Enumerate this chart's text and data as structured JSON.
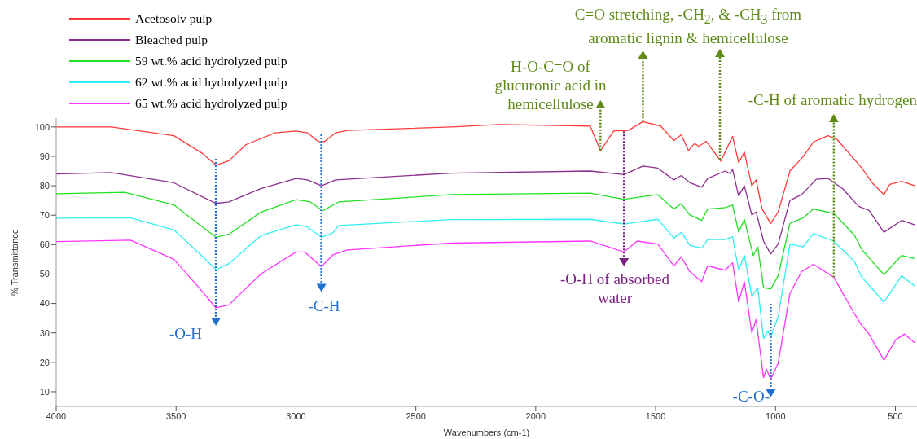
{
  "chart_data": {
    "type": "line",
    "xlabel": "Wavenumbers (cm-1)",
    "ylabel": "% Transmittance",
    "xlim": [
      4000,
      410
    ],
    "ylim": [
      5,
      103
    ],
    "xticks": [
      4000,
      3500,
      3000,
      2500,
      2000,
      1500,
      1000,
      500
    ],
    "yticks": [
      10,
      20,
      30,
      40,
      50,
      60,
      70,
      80,
      90,
      100
    ],
    "legend": "top left",
    "series": [
      {
        "name": "Acetosolv pulp",
        "color": "#ff3b3b",
        "x": [
          4000,
          3770,
          3509,
          3390,
          3334,
          3280,
          3208,
          3087,
          3000,
          2952,
          2906,
          2882,
          2834,
          2786,
          2352,
          2153,
          1773,
          1730,
          1675,
          1614,
          1553,
          1479,
          1424,
          1393,
          1363,
          1338,
          1320,
          1289,
          1228,
          1179,
          1154,
          1130,
          1099,
          1081,
          1056,
          1020,
          989,
          940,
          885,
          842,
          781,
          744,
          671,
          640,
          597,
          548,
          523,
          474,
          419
        ],
        "values": [
          100,
          100,
          97,
          91,
          87,
          88.5,
          94,
          98,
          98.6,
          98,
          95,
          95,
          98,
          98.8,
          100,
          100.8,
          100.3,
          91.9,
          98.6,
          98.8,
          101.8,
          100.3,
          95.4,
          97.3,
          91.9,
          94.4,
          93.4,
          95.1,
          88.4,
          96.8,
          87.9,
          91.4,
          80,
          82,
          72.1,
          67.2,
          71.1,
          85,
          89.9,
          94.9,
          97,
          95.8,
          88.9,
          86,
          81,
          77,
          80.5,
          81.5,
          80
        ]
      },
      {
        "name": "Bleached pulp",
        "color": "#8b2f8f",
        "x": [
          4000,
          3770,
          3509,
          3334,
          3280,
          3147,
          3000,
          2952,
          2894,
          2834,
          2352,
          1773,
          1632,
          1553,
          1491,
          1424,
          1393,
          1357,
          1308,
          1283,
          1210,
          1191,
          1179,
          1154,
          1130,
          1099,
          1081,
          1050,
          1020,
          989,
          940,
          891,
          830,
          781,
          720,
          653,
          610,
          548,
          474,
          419
        ],
        "values": [
          84,
          84.5,
          81,
          74,
          74.5,
          79,
          82.5,
          82,
          80,
          82,
          84.3,
          85,
          83.8,
          86.7,
          86,
          82,
          83.5,
          81,
          79.5,
          82.5,
          85,
          84.2,
          85.5,
          76.6,
          80,
          70.1,
          71.1,
          61.2,
          56.8,
          60.2,
          75,
          77,
          82.2,
          82.5,
          79,
          73,
          71.6,
          64.2,
          68.2,
          66.7
        ]
      },
      {
        "name": "59 wt.% acid hydrolyzed pulp",
        "color": "#22e022",
        "x": [
          4000,
          3714,
          3509,
          3390,
          3334,
          3280,
          3147,
          3000,
          2940,
          2888,
          2822,
          2352,
          1773,
          1632,
          1491,
          1424,
          1393,
          1357,
          1308,
          1283,
          1210,
          1179,
          1154,
          1130,
          1093,
          1074,
          1050,
          1020,
          989,
          940,
          885,
          842,
          757,
          671,
          640,
          548,
          474,
          419
        ],
        "values": [
          77.3,
          77.8,
          73.5,
          66,
          62.5,
          63.5,
          71,
          75.3,
          74.5,
          71.5,
          74.5,
          77,
          77.5,
          75.4,
          77,
          72.1,
          73.9,
          70.1,
          68.2,
          72.1,
          72.6,
          73.5,
          64.2,
          68.6,
          56.3,
          59.2,
          45.4,
          44.9,
          49.4,
          67.2,
          69.1,
          72.1,
          70.6,
          63.2,
          58.3,
          49.8,
          56.3,
          55.3
        ]
      },
      {
        "name": "62 wt.% acid hydrolyzed pulp",
        "color": "#33eef0",
        "x": [
          4000,
          3690,
          3509,
          3390,
          3334,
          3280,
          3147,
          3000,
          2952,
          2894,
          2846,
          2822,
          2352,
          1773,
          1632,
          1491,
          1424,
          1393,
          1357,
          1308,
          1283,
          1210,
          1179,
          1154,
          1130,
          1099,
          1074,
          1050,
          1032,
          1020,
          989,
          940,
          885,
          842,
          757,
          671,
          640,
          548,
          474,
          419
        ],
        "values": [
          69,
          69.1,
          65,
          56,
          51.5,
          53.5,
          63,
          66.8,
          66,
          62.5,
          64,
          66.5,
          68.5,
          68.6,
          67,
          68.6,
          62.2,
          64.2,
          59.7,
          58.8,
          61.7,
          61.7,
          62.7,
          51.3,
          56.3,
          42.4,
          45.4,
          28.1,
          30.6,
          28.6,
          35.5,
          60.2,
          59.2,
          63.7,
          61.2,
          54.3,
          48.9,
          40.5,
          49.4,
          45.9
        ]
      },
      {
        "name": "65 wt.% acid hydrolyzed pulp",
        "color": "#ff33ff",
        "x": [
          4000,
          3690,
          3509,
          3390,
          3334,
          3280,
          3147,
          3000,
          2964,
          2894,
          2846,
          2786,
          2352,
          1773,
          1632,
          1577,
          1491,
          1424,
          1393,
          1357,
          1308,
          1283,
          1210,
          1179,
          1154,
          1130,
          1099,
          1081,
          1050,
          1038,
          1020,
          989,
          940,
          891,
          842,
          757,
          671,
          640,
          610,
          548,
          499,
          462,
          419
        ],
        "values": [
          61,
          61.5,
          55,
          44,
          38.5,
          39.5,
          50,
          57.5,
          57.5,
          52.5,
          56.5,
          58.2,
          60.5,
          61.2,
          57.5,
          61.2,
          60.2,
          52.8,
          55.8,
          50.8,
          47.4,
          52.8,
          51.3,
          53.8,
          40.5,
          47.4,
          30.1,
          34.5,
          14.8,
          17.7,
          14.2,
          19.7,
          43.4,
          50.8,
          53.3,
          48.9,
          36.5,
          32.5,
          29.6,
          20.7,
          27.6,
          29.6,
          26.6
        ]
      }
    ],
    "annotations": [
      {
        "text": "-O-H",
        "x": 3334,
        "y": 38.5
      },
      {
        "text": "-C-H",
        "x": 2894,
        "y": 52.5
      },
      {
        "text": "-O-H of absorbed water",
        "x": 1632,
        "y": 98.5
      },
      {
        "text": "-C-O-",
        "x": 1020,
        "y": 14.2
      },
      {
        "text": "H-O-C=O of glucuronic acid in hemicellulose",
        "x": 1730,
        "y": 92
      },
      {
        "text": "C=O stretching, -CH$_{2}$, & -CH$_{3}$ from aromatic lignin & hemicellulose",
        "x": 1553,
        "y": 101.8
      },
      {
        "text": "-C-H of aromatic hydrogen",
        "x": 757,
        "y": 48.9
      }
    ]
  }
}
